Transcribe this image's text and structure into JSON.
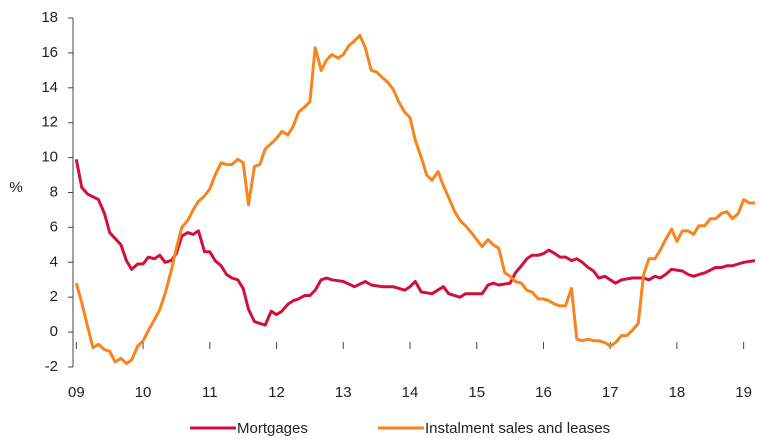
{
  "chart_data": {
    "type": "line",
    "y_label": "%",
    "xlim": [
      8.95,
      19.2
    ],
    "ylim": [
      -2,
      18
    ],
    "xticks": [
      {
        "value": 9,
        "label": "09"
      },
      10,
      11,
      12,
      13,
      14,
      15,
      16,
      17,
      18,
      19
    ],
    "yticks": [
      -2,
      0,
      2,
      4,
      6,
      8,
      10,
      12,
      14,
      16,
      18
    ],
    "series": [
      {
        "name": "Mortgages",
        "color": "#d0103a",
        "x": [
          9.0,
          9.08,
          9.17,
          9.33,
          9.42,
          9.5,
          9.67,
          9.75,
          9.83,
          9.92,
          10.0,
          10.08,
          10.17,
          10.25,
          10.33,
          10.42,
          10.5,
          10.58,
          10.67,
          10.75,
          10.83,
          10.92,
          11.0,
          11.08,
          11.17,
          11.25,
          11.33,
          11.42,
          11.5,
          11.58,
          11.67,
          11.75,
          11.83,
          11.92,
          12.0,
          12.08,
          12.17,
          12.25,
          12.33,
          12.42,
          12.5,
          12.58,
          12.67,
          12.75,
          12.83,
          13.0,
          13.17,
          13.33,
          13.42,
          13.58,
          13.75,
          13.92,
          14.0,
          14.08,
          14.17,
          14.33,
          14.5,
          14.58,
          14.75,
          14.83,
          15.0,
          15.08,
          15.17,
          15.25,
          15.33,
          15.5,
          15.58,
          15.67,
          15.75,
          15.83,
          15.92,
          16.0,
          16.08,
          16.17,
          16.25,
          16.33,
          16.42,
          16.5,
          16.58,
          16.67,
          16.75,
          16.83,
          16.92,
          17.0,
          17.08,
          17.17,
          17.33,
          17.5,
          17.58,
          17.67,
          17.75,
          17.83,
          17.92,
          18.08,
          18.17,
          18.25,
          18.33,
          18.42,
          18.58,
          18.67,
          18.75,
          18.83,
          18.92,
          19.0,
          19.17
        ],
        "values": [
          9.9,
          8.3,
          7.9,
          7.6,
          6.8,
          5.7,
          5.0,
          4.1,
          3.6,
          3.9,
          3.9,
          4.3,
          4.2,
          4.4,
          4.0,
          4.1,
          4.5,
          5.5,
          5.7,
          5.6,
          5.8,
          4.6,
          4.6,
          4.1,
          3.8,
          3.3,
          3.1,
          3.0,
          2.5,
          1.3,
          0.6,
          0.5,
          0.4,
          1.2,
          1.0,
          1.2,
          1.6,
          1.8,
          1.9,
          2.1,
          2.1,
          2.4,
          3.0,
          3.1,
          3.0,
          2.9,
          2.6,
          2.9,
          2.7,
          2.6,
          2.6,
          2.4,
          2.6,
          2.9,
          2.3,
          2.2,
          2.6,
          2.2,
          2.0,
          2.2,
          2.2,
          2.2,
          2.7,
          2.8,
          2.7,
          2.8,
          3.4,
          3.8,
          4.2,
          4.4,
          4.4,
          4.5,
          4.7,
          4.5,
          4.3,
          4.3,
          4.1,
          4.2,
          4.0,
          3.7,
          3.5,
          3.1,
          3.2,
          3.0,
          2.8,
          3.0,
          3.1,
          3.1,
          3.0,
          3.2,
          3.1,
          3.3,
          3.6,
          3.5,
          3.3,
          3.2,
          3.3,
          3.4,
          3.7,
          3.7,
          3.8,
          3.8,
          3.9,
          4.0,
          4.1
        ]
      },
      {
        "name": "Instalment sales and leases",
        "color": "#f7841f",
        "x": [
          9.0,
          9.08,
          9.17,
          9.25,
          9.33,
          9.42,
          9.5,
          9.58,
          9.67,
          9.75,
          9.83,
          9.92,
          10.0,
          10.08,
          10.17,
          10.25,
          10.33,
          10.42,
          10.5,
          10.58,
          10.67,
          10.75,
          10.83,
          10.92,
          11.0,
          11.08,
          11.17,
          11.25,
          11.33,
          11.42,
          11.5,
          11.58,
          11.67,
          11.75,
          11.83,
          11.92,
          12.0,
          12.08,
          12.17,
          12.25,
          12.33,
          12.42,
          12.5,
          12.58,
          12.67,
          12.75,
          12.83,
          12.92,
          13.0,
          13.08,
          13.17,
          13.25,
          13.33,
          13.42,
          13.5,
          13.58,
          13.67,
          13.75,
          13.83,
          13.92,
          14.0,
          14.08,
          14.17,
          14.25,
          14.33,
          14.42,
          14.5,
          14.58,
          14.67,
          14.75,
          14.83,
          14.92,
          15.0,
          15.08,
          15.17,
          15.25,
          15.33,
          15.42,
          15.5,
          15.58,
          15.67,
          15.75,
          15.83,
          15.92,
          16.0,
          16.08,
          16.17,
          16.25,
          16.33,
          16.42,
          16.5,
          16.58,
          16.67,
          16.75,
          16.83,
          16.92,
          17.0,
          17.08,
          17.17,
          17.25,
          17.33,
          17.42,
          17.5,
          17.58,
          17.67,
          17.75,
          17.83,
          17.92,
          18.0,
          18.08,
          18.17,
          18.25,
          18.33,
          18.42,
          18.5,
          18.58,
          18.67,
          18.75,
          18.83,
          18.92,
          19.0,
          19.08,
          19.17
        ],
        "values": [
          2.8,
          1.7,
          0.3,
          -0.9,
          -0.7,
          -1.0,
          -1.1,
          -1.7,
          -1.5,
          -1.8,
          -1.6,
          -0.8,
          -0.5,
          0.1,
          0.7,
          1.3,
          2.2,
          3.5,
          4.8,
          6.0,
          6.4,
          7.0,
          7.5,
          7.8,
          8.2,
          9.0,
          9.7,
          9.6,
          9.6,
          9.9,
          9.7,
          7.3,
          9.5,
          9.6,
          10.5,
          10.8,
          11.1,
          11.5,
          11.3,
          11.8,
          12.6,
          12.9,
          13.2,
          16.3,
          15.0,
          15.6,
          15.9,
          15.7,
          15.9,
          16.4,
          16.7,
          17.0,
          16.3,
          15.0,
          14.9,
          14.6,
          14.3,
          13.9,
          13.2,
          12.6,
          12.3,
          11.0,
          10.0,
          9.0,
          8.7,
          9.2,
          8.4,
          7.7,
          6.9,
          6.4,
          6.1,
          5.7,
          5.3,
          4.9,
          5.3,
          5.0,
          4.8,
          3.4,
          3.2,
          2.9,
          2.8,
          2.4,
          2.3,
          1.9,
          1.9,
          1.8,
          1.6,
          1.5,
          1.5,
          2.5,
          -0.4,
          -0.5,
          -0.4,
          -0.5,
          -0.5,
          -0.6,
          -0.8,
          -0.6,
          -0.2,
          -0.2,
          0.1,
          0.5,
          3.3,
          4.2,
          4.2,
          4.7,
          5.3,
          5.9,
          5.2,
          5.8,
          5.8,
          5.6,
          6.1,
          6.1,
          6.5,
          6.5,
          6.8,
          6.9,
          6.5,
          6.8,
          7.6,
          7.4,
          7.4
        ]
      }
    ]
  }
}
